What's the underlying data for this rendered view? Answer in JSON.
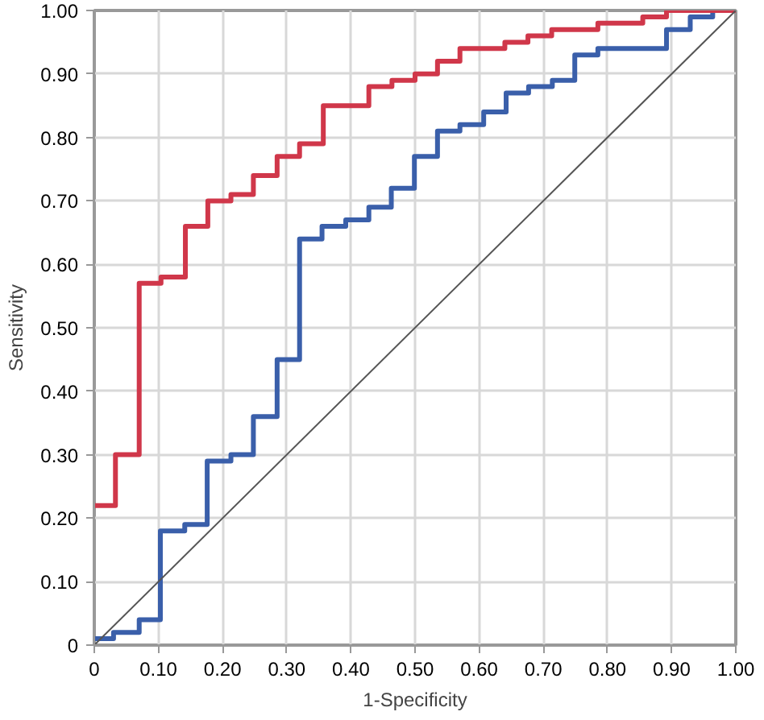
{
  "chart_data": {
    "type": "step",
    "xlabel": "1-Specificity",
    "ylabel": "Sensitivity",
    "xlim": [
      0,
      1
    ],
    "ylim": [
      0,
      1
    ],
    "xticks": [
      0,
      {
        "value": 0.1,
        "label": "0.10"
      },
      {
        "value": 0.2,
        "label": "0.20"
      },
      {
        "value": 0.3,
        "label": "0.30"
      },
      {
        "value": 0.4,
        "label": "0.40"
      },
      {
        "value": 0.5,
        "label": "0.50"
      },
      {
        "value": 0.6,
        "label": "0.60"
      },
      {
        "value": 0.7,
        "label": "0.70"
      },
      {
        "value": 0.8,
        "label": "0.80"
      },
      {
        "value": 0.9,
        "label": "0.90"
      },
      {
        "value": 1,
        "label": "1.00"
      }
    ],
    "yticks": [
      0,
      {
        "value": 0.1,
        "label": "0.10"
      },
      {
        "value": 0.2,
        "label": "0.20"
      },
      {
        "value": 0.3,
        "label": "0.30"
      },
      {
        "value": 0.4,
        "label": "0.40"
      },
      {
        "value": 0.5,
        "label": "0.50"
      },
      {
        "value": 0.6,
        "label": "0.60"
      },
      {
        "value": 0.7,
        "label": "0.70"
      },
      {
        "value": 0.8,
        "label": "0.80"
      },
      {
        "value": 0.9,
        "label": "0.90"
      },
      {
        "value": 1,
        "label": "1.00"
      }
    ],
    "grid": true,
    "series": [
      {
        "color": "#3a5faa",
        "x": [
          0,
          0.03,
          0.07,
          0.103,
          0.141,
          0.176,
          0.213,
          0.248,
          0.285,
          0.32,
          0.355,
          0.392,
          0.428,
          0.463,
          0.499,
          0.535,
          0.57,
          0.607,
          0.642,
          0.677,
          0.714,
          0.749,
          0.785,
          0.892,
          0.929,
          0.964,
          1.0
        ],
        "values": [
          0.01,
          0.02,
          0.04,
          0.18,
          0.19,
          0.29,
          0.3,
          0.36,
          0.45,
          0.64,
          0.66,
          0.67,
          0.69,
          0.72,
          0.77,
          0.81,
          0.82,
          0.84,
          0.87,
          0.88,
          0.89,
          0.93,
          0.94,
          0.97,
          0.99,
          1.0,
          1.0
        ]
      },
      {
        "color": "#d0374a",
        "x": [
          0,
          0.033,
          0.07,
          0.104,
          0.142,
          0.177,
          0.213,
          0.248,
          0.285,
          0.32,
          0.357,
          0.428,
          0.464,
          0.5,
          0.535,
          0.57,
          0.64,
          0.676,
          0.713,
          0.748,
          0.785,
          0.855,
          0.892,
          1.0
        ],
        "values": [
          0.22,
          0.3,
          0.57,
          0.58,
          0.66,
          0.7,
          0.71,
          0.74,
          0.77,
          0.79,
          0.85,
          0.88,
          0.89,
          0.9,
          0.92,
          0.94,
          0.95,
          0.96,
          0.97,
          0.97,
          0.98,
          0.99,
          1.0,
          1.0
        ]
      },
      {
        "type": "line",
        "color": "#555555",
        "x": [
          0,
          1
        ],
        "values": [
          0,
          1
        ]
      }
    ]
  }
}
